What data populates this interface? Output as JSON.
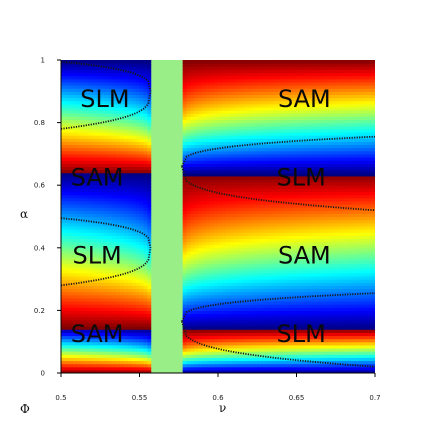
{
  "chart_data": {
    "type": "heatmap",
    "xlabel": "ν",
    "ylabel": "α",
    "colorbar_label": "Φ",
    "xlim": [
      0.5,
      0.7
    ],
    "ylim": [
      0,
      1
    ],
    "x_ticks": [
      {
        "value": 0.5,
        "label": "0.5"
      },
      {
        "value": 0.55,
        "label": "0.55"
      },
      {
        "value": 0.6,
        "label": "0.6"
      },
      {
        "value": 0.65,
        "label": "0.65"
      },
      {
        "value": 0.7,
        "label": "0.7"
      }
    ],
    "y_ticks": [
      {
        "value": 0,
        "label": "0"
      },
      {
        "value": 0.2,
        "label": "0.2"
      },
      {
        "value": 0.4,
        "label": "0.4"
      },
      {
        "value": 0.6,
        "label": "0.6"
      },
      {
        "value": 0.8,
        "label": "0.8"
      },
      {
        "value": 1,
        "label": "1"
      }
    ],
    "gap_band": {
      "x_start": 0.557,
      "x_end": 0.577,
      "color": "#99ee88"
    },
    "left_jumps": [
      0.145,
      0.64
    ],
    "right_jumps": [
      0.14,
      0.635
    ],
    "region_labels": [
      {
        "text": "SLM",
        "x": 0.528,
        "y": 0.875
      },
      {
        "text": "SAM",
        "x": 0.523,
        "y": 0.625
      },
      {
        "text": "SLM",
        "x": 0.523,
        "y": 0.375
      },
      {
        "text": "SAM",
        "x": 0.523,
        "y": 0.125
      },
      {
        "text": "SAM",
        "x": 0.655,
        "y": 0.875
      },
      {
        "text": "SLM",
        "x": 0.653,
        "y": 0.625
      },
      {
        "text": "SAM",
        "x": 0.655,
        "y": 0.375
      },
      {
        "text": "SLM",
        "x": 0.653,
        "y": 0.125
      }
    ]
  }
}
